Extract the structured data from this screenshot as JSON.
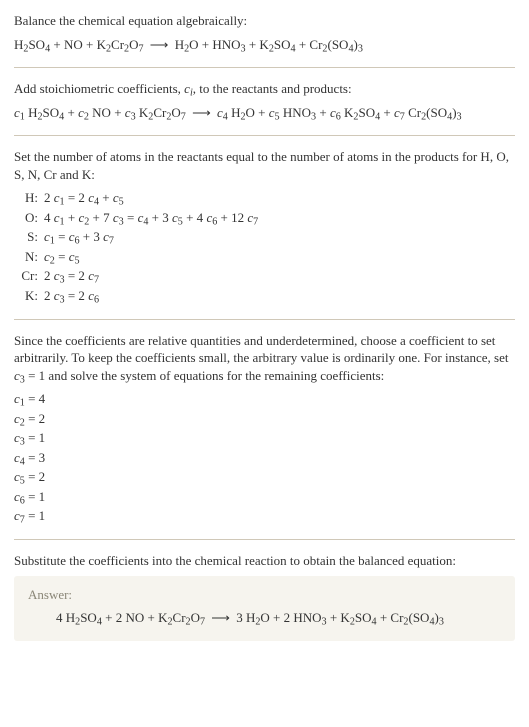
{
  "intro": {
    "title": "Balance the chemical equation algebraically:",
    "unbalanced_lhs": "H<sub>2</sub>SO<sub>4</sub> + NO + K<sub>2</sub>Cr<sub>2</sub>O<sub>7</sub>",
    "unbalanced_rhs": "H<sub>2</sub>O + HNO<sub>3</sub> + K<sub>2</sub>SO<sub>4</sub> + Cr<sub>2</sub>(SO<sub>4</sub>)<sub>3</sub>"
  },
  "stoich": {
    "text": "Add stoichiometric coefficients, <span class=\"ci\">c<sub>i</sub></span>, to the reactants and products:",
    "lhs": "<span class=\"ci\">c</span><sub>1</sub> H<sub>2</sub>SO<sub>4</sub> + <span class=\"ci\">c</span><sub>2</sub> NO + <span class=\"ci\">c</span><sub>3</sub> K<sub>2</sub>Cr<sub>2</sub>O<sub>7</sub>",
    "rhs": "<span class=\"ci\">c</span><sub>4</sub> H<sub>2</sub>O + <span class=\"ci\">c</span><sub>5</sub> HNO<sub>3</sub> + <span class=\"ci\">c</span><sub>6</sub> K<sub>2</sub>SO<sub>4</sub> + <span class=\"ci\">c</span><sub>7</sub> Cr<sub>2</sub>(SO<sub>4</sub>)<sub>3</sub>"
  },
  "atoms": {
    "intro": "Set the number of atoms in the reactants equal to the number of atoms in the products for H, O, S, N, Cr and K:",
    "rows": [
      {
        "label": "H:",
        "eq": "2 <span class=\"ci\">c</span><sub>1</sub> = 2 <span class=\"ci\">c</span><sub>4</sub> + <span class=\"ci\">c</span><sub>5</sub>"
      },
      {
        "label": "O:",
        "eq": "4 <span class=\"ci\">c</span><sub>1</sub> + <span class=\"ci\">c</span><sub>2</sub> + 7 <span class=\"ci\">c</span><sub>3</sub> = <span class=\"ci\">c</span><sub>4</sub> + 3 <span class=\"ci\">c</span><sub>5</sub> + 4 <span class=\"ci\">c</span><sub>6</sub> + 12 <span class=\"ci\">c</span><sub>7</sub>"
      },
      {
        "label": "S:",
        "eq": "<span class=\"ci\">c</span><sub>1</sub> = <span class=\"ci\">c</span><sub>6</sub> + 3 <span class=\"ci\">c</span><sub>7</sub>"
      },
      {
        "label": "N:",
        "eq": "<span class=\"ci\">c</span><sub>2</sub> = <span class=\"ci\">c</span><sub>5</sub>"
      },
      {
        "label": "Cr:",
        "eq": "2 <span class=\"ci\">c</span><sub>3</sub> = 2 <span class=\"ci\">c</span><sub>7</sub>"
      },
      {
        "label": "K:",
        "eq": "2 <span class=\"ci\">c</span><sub>3</sub> = 2 <span class=\"ci\">c</span><sub>6</sub>"
      }
    ]
  },
  "solve": {
    "text": "Since the coefficients are relative quantities and underdetermined, choose a coefficient to set arbitrarily. To keep the coefficients small, the arbitrary value is ordinarily one. For instance, set <span class=\"ci\">c</span><sub>3</sub> = 1 and solve the system of equations for the remaining coefficients:",
    "coeffs": [
      "<span class=\"ci\">c</span><sub>1</sub> = 4",
      "<span class=\"ci\">c</span><sub>2</sub> = 2",
      "<span class=\"ci\">c</span><sub>3</sub> = 1",
      "<span class=\"ci\">c</span><sub>4</sub> = 3",
      "<span class=\"ci\">c</span><sub>5</sub> = 2",
      "<span class=\"ci\">c</span><sub>6</sub> = 1",
      "<span class=\"ci\">c</span><sub>7</sub> = 1"
    ]
  },
  "final": {
    "text": "Substitute the coefficients into the chemical reaction to obtain the balanced equation:",
    "answer_label": "Answer:",
    "lhs": "4 H<sub>2</sub>SO<sub>4</sub> + 2 NO + K<sub>2</sub>Cr<sub>2</sub>O<sub>7</sub>",
    "rhs": "3 H<sub>2</sub>O + 2 HNO<sub>3</sub> + K<sub>2</sub>SO<sub>4</sub> + Cr<sub>2</sub>(SO<sub>4</sub>)<sub>3</sub>"
  },
  "arrow": "⟶"
}
